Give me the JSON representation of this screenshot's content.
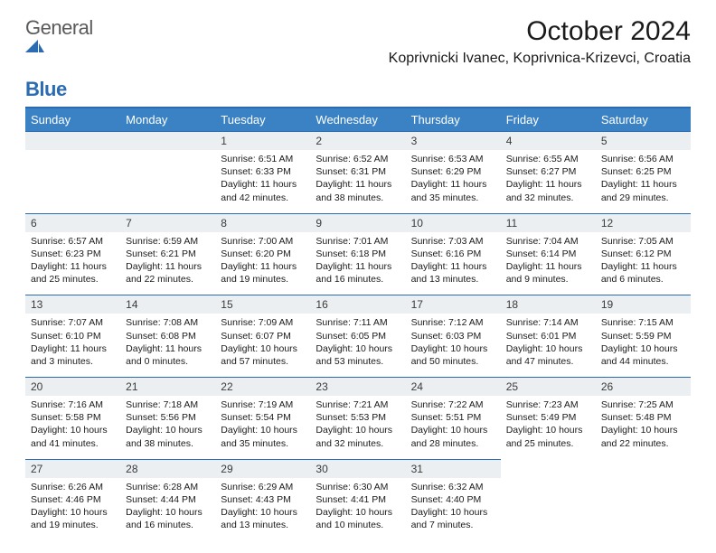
{
  "brand": {
    "part1": "General",
    "part2": "Blue"
  },
  "title": "October 2024",
  "location": "Koprivnicki Ivanec, Koprivnica-Krizevci, Croatia",
  "colors": {
    "header_bg": "#3b82c4",
    "header_text": "#ffffff",
    "rule": "#2b6bb2",
    "numrow_bg": "#eceff1",
    "brand_blue": "#2b6bb2",
    "brand_gray": "#5a5a5a"
  },
  "weekdays": [
    "Sunday",
    "Monday",
    "Tuesday",
    "Wednesday",
    "Thursday",
    "Friday",
    "Saturday"
  ],
  "weeks": [
    [
      {
        "n": "",
        "sunrise": "",
        "sunset": "",
        "daylight": ""
      },
      {
        "n": "",
        "sunrise": "",
        "sunset": "",
        "daylight": ""
      },
      {
        "n": "1",
        "sunrise": "Sunrise: 6:51 AM",
        "sunset": "Sunset: 6:33 PM",
        "daylight": "Daylight: 11 hours and 42 minutes."
      },
      {
        "n": "2",
        "sunrise": "Sunrise: 6:52 AM",
        "sunset": "Sunset: 6:31 PM",
        "daylight": "Daylight: 11 hours and 38 minutes."
      },
      {
        "n": "3",
        "sunrise": "Sunrise: 6:53 AM",
        "sunset": "Sunset: 6:29 PM",
        "daylight": "Daylight: 11 hours and 35 minutes."
      },
      {
        "n": "4",
        "sunrise": "Sunrise: 6:55 AM",
        "sunset": "Sunset: 6:27 PM",
        "daylight": "Daylight: 11 hours and 32 minutes."
      },
      {
        "n": "5",
        "sunrise": "Sunrise: 6:56 AM",
        "sunset": "Sunset: 6:25 PM",
        "daylight": "Daylight: 11 hours and 29 minutes."
      }
    ],
    [
      {
        "n": "6",
        "sunrise": "Sunrise: 6:57 AM",
        "sunset": "Sunset: 6:23 PM",
        "daylight": "Daylight: 11 hours and 25 minutes."
      },
      {
        "n": "7",
        "sunrise": "Sunrise: 6:59 AM",
        "sunset": "Sunset: 6:21 PM",
        "daylight": "Daylight: 11 hours and 22 minutes."
      },
      {
        "n": "8",
        "sunrise": "Sunrise: 7:00 AM",
        "sunset": "Sunset: 6:20 PM",
        "daylight": "Daylight: 11 hours and 19 minutes."
      },
      {
        "n": "9",
        "sunrise": "Sunrise: 7:01 AM",
        "sunset": "Sunset: 6:18 PM",
        "daylight": "Daylight: 11 hours and 16 minutes."
      },
      {
        "n": "10",
        "sunrise": "Sunrise: 7:03 AM",
        "sunset": "Sunset: 6:16 PM",
        "daylight": "Daylight: 11 hours and 13 minutes."
      },
      {
        "n": "11",
        "sunrise": "Sunrise: 7:04 AM",
        "sunset": "Sunset: 6:14 PM",
        "daylight": "Daylight: 11 hours and 9 minutes."
      },
      {
        "n": "12",
        "sunrise": "Sunrise: 7:05 AM",
        "sunset": "Sunset: 6:12 PM",
        "daylight": "Daylight: 11 hours and 6 minutes."
      }
    ],
    [
      {
        "n": "13",
        "sunrise": "Sunrise: 7:07 AM",
        "sunset": "Sunset: 6:10 PM",
        "daylight": "Daylight: 11 hours and 3 minutes."
      },
      {
        "n": "14",
        "sunrise": "Sunrise: 7:08 AM",
        "sunset": "Sunset: 6:08 PM",
        "daylight": "Daylight: 11 hours and 0 minutes."
      },
      {
        "n": "15",
        "sunrise": "Sunrise: 7:09 AM",
        "sunset": "Sunset: 6:07 PM",
        "daylight": "Daylight: 10 hours and 57 minutes."
      },
      {
        "n": "16",
        "sunrise": "Sunrise: 7:11 AM",
        "sunset": "Sunset: 6:05 PM",
        "daylight": "Daylight: 10 hours and 53 minutes."
      },
      {
        "n": "17",
        "sunrise": "Sunrise: 7:12 AM",
        "sunset": "Sunset: 6:03 PM",
        "daylight": "Daylight: 10 hours and 50 minutes."
      },
      {
        "n": "18",
        "sunrise": "Sunrise: 7:14 AM",
        "sunset": "Sunset: 6:01 PM",
        "daylight": "Daylight: 10 hours and 47 minutes."
      },
      {
        "n": "19",
        "sunrise": "Sunrise: 7:15 AM",
        "sunset": "Sunset: 5:59 PM",
        "daylight": "Daylight: 10 hours and 44 minutes."
      }
    ],
    [
      {
        "n": "20",
        "sunrise": "Sunrise: 7:16 AM",
        "sunset": "Sunset: 5:58 PM",
        "daylight": "Daylight: 10 hours and 41 minutes."
      },
      {
        "n": "21",
        "sunrise": "Sunrise: 7:18 AM",
        "sunset": "Sunset: 5:56 PM",
        "daylight": "Daylight: 10 hours and 38 minutes."
      },
      {
        "n": "22",
        "sunrise": "Sunrise: 7:19 AM",
        "sunset": "Sunset: 5:54 PM",
        "daylight": "Daylight: 10 hours and 35 minutes."
      },
      {
        "n": "23",
        "sunrise": "Sunrise: 7:21 AM",
        "sunset": "Sunset: 5:53 PM",
        "daylight": "Daylight: 10 hours and 32 minutes."
      },
      {
        "n": "24",
        "sunrise": "Sunrise: 7:22 AM",
        "sunset": "Sunset: 5:51 PM",
        "daylight": "Daylight: 10 hours and 28 minutes."
      },
      {
        "n": "25",
        "sunrise": "Sunrise: 7:23 AM",
        "sunset": "Sunset: 5:49 PM",
        "daylight": "Daylight: 10 hours and 25 minutes."
      },
      {
        "n": "26",
        "sunrise": "Sunrise: 7:25 AM",
        "sunset": "Sunset: 5:48 PM",
        "daylight": "Daylight: 10 hours and 22 minutes."
      }
    ],
    [
      {
        "n": "27",
        "sunrise": "Sunrise: 6:26 AM",
        "sunset": "Sunset: 4:46 PM",
        "daylight": "Daylight: 10 hours and 19 minutes."
      },
      {
        "n": "28",
        "sunrise": "Sunrise: 6:28 AM",
        "sunset": "Sunset: 4:44 PM",
        "daylight": "Daylight: 10 hours and 16 minutes."
      },
      {
        "n": "29",
        "sunrise": "Sunrise: 6:29 AM",
        "sunset": "Sunset: 4:43 PM",
        "daylight": "Daylight: 10 hours and 13 minutes."
      },
      {
        "n": "30",
        "sunrise": "Sunrise: 6:30 AM",
        "sunset": "Sunset: 4:41 PM",
        "daylight": "Daylight: 10 hours and 10 minutes."
      },
      {
        "n": "31",
        "sunrise": "Sunrise: 6:32 AM",
        "sunset": "Sunset: 4:40 PM",
        "daylight": "Daylight: 10 hours and 7 minutes."
      },
      {
        "n": "",
        "sunrise": "",
        "sunset": "",
        "daylight": ""
      },
      {
        "n": "",
        "sunrise": "",
        "sunset": "",
        "daylight": ""
      }
    ]
  ]
}
